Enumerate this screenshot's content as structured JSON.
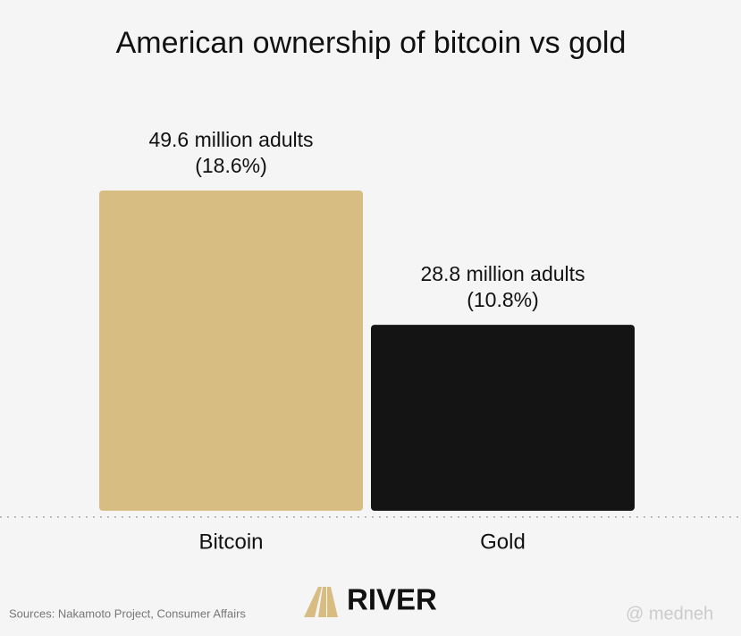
{
  "chart_data": {
    "type": "bar",
    "title": "American ownership of bitcoin vs gold",
    "categories": [
      "Bitcoin",
      "Gold"
    ],
    "values": [
      49.6,
      28.8
    ],
    "value_labels": [
      "49.6 million adults",
      "28.8 million adults"
    ],
    "shares": [
      18.6,
      10.8
    ],
    "share_labels": [
      "(18.6%)",
      "(10.8%)"
    ],
    "colors": [
      "#d8bd83",
      "#141414"
    ],
    "source": "Sources: Nakamoto Project, Consumer Affairs",
    "brand": "RIVER",
    "watermark": "@ medneh"
  }
}
